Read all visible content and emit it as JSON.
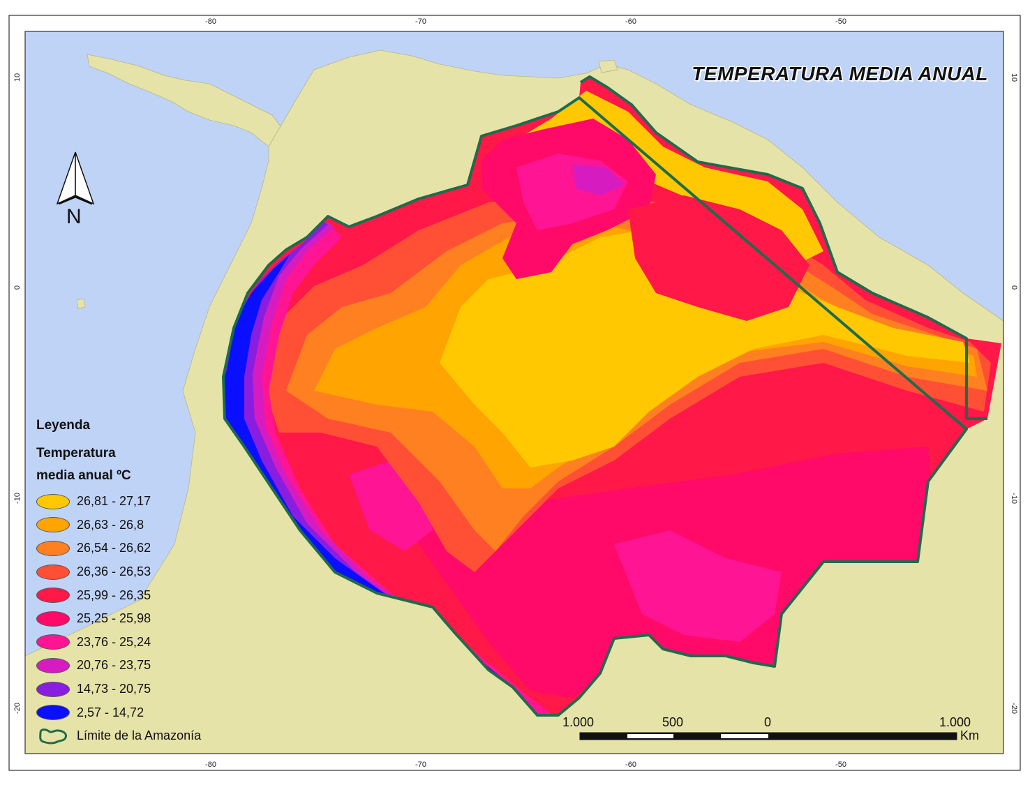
{
  "map": {
    "title": "TEMPERATURA MEDIA ANUAL",
    "north_label": "N",
    "ocean_color": "#bfd3f7",
    "land_color": "#e6e3a8",
    "boundary_color": "#1f6b4c"
  },
  "frame": {
    "longitude_labels": [
      "-80",
      "-70",
      "-60",
      "-50"
    ],
    "latitude_labels": [
      "10",
      "0",
      "-10",
      "-20"
    ]
  },
  "legend": {
    "heading": "Leyenda",
    "subtitle_line1": "Temperatura",
    "subtitle_line2": "media anual ºC",
    "items": [
      {
        "label": "26,81 - 27,17",
        "color": "#ffc800"
      },
      {
        "label": "26,63 - 26,8",
        "color": "#ffa400"
      },
      {
        "label": "26,54 - 26,62",
        "color": "#ff8020"
      },
      {
        "label": "26,36 - 26,53",
        "color": "#ff5035"
      },
      {
        "label": "25,99 - 26,35",
        "color": "#ff1848"
      },
      {
        "label": "25,25 - 25,98",
        "color": "#ff0a68"
      },
      {
        "label": "23,76 - 25,24",
        "color": "#ff1493"
      },
      {
        "label": "20,76 - 23,75",
        "color": "#d61cc0"
      },
      {
        "label": "14,73 - 20,75",
        "color": "#8a1ee0"
      },
      {
        "label": "2,57 - 14,72",
        "color": "#0a10ff"
      }
    ],
    "boundary_label": "Límite de la Amazonía"
  },
  "scalebar": {
    "labels": [
      "1.000",
      "500",
      "0",
      "1.000"
    ],
    "unit": "Km"
  }
}
